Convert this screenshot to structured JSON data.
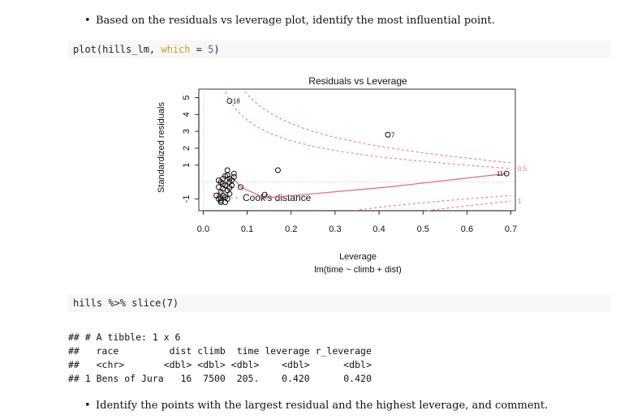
{
  "bullets": {
    "first": "Based on the residuals vs leverage plot, identify the most influential point.",
    "last": "Identify the points with the largest residual and the highest leverage, and comment."
  },
  "code1": {
    "fn": "plot(hills_lm, ",
    "arg": "which",
    "eq": " = ",
    "val": "5",
    "close": ")"
  },
  "code2": {
    "text": "hills %>% slice(7)"
  },
  "output_lines": [
    "## # A tibble: 1 x 6",
    "##   race         dist climb  time leverage r_leverage",
    "##   <chr>       <dbl> <dbl> <dbl>    <dbl>      <dbl>",
    "## 1 Bens of Jura   16  7500  205.    0.420      0.420"
  ],
  "chart_data": {
    "type": "scatter",
    "title": "Residuals vs Leverage",
    "xlabel": "Leverage",
    "xlabel2": "lm(time ~ climb + dist)",
    "ylabel": "Standardized residuals",
    "xlim": [
      -0.01,
      0.71
    ],
    "ylim": [
      -1.7,
      5.5
    ],
    "xticks": [
      "0.0",
      "0.1",
      "0.2",
      "0.3",
      "0.4",
      "0.5",
      "0.6",
      "0.7"
    ],
    "xtick_values": [
      0,
      0.1,
      0.2,
      0.3,
      0.4,
      0.5,
      0.6,
      0.7
    ],
    "yticks": [
      "-1",
      "1",
      "2",
      "3",
      "4",
      "5"
    ],
    "ytick_values": [
      -1,
      1,
      2,
      3,
      4,
      5
    ],
    "legend_text": "Cook's distance",
    "cook_labels": [
      "0.5",
      "1"
    ],
    "point_labels": [
      {
        "text": "18",
        "x": 0.06,
        "y": 4.8
      },
      {
        "text": "7",
        "x": 0.42,
        "y": 2.8
      },
      {
        "text": "11",
        "x": 0.69,
        "y": 0.5
      }
    ],
    "points": [
      {
        "x": 0.06,
        "y": 4.8
      },
      {
        "x": 0.42,
        "y": 2.8
      },
      {
        "x": 0.69,
        "y": 0.5
      },
      {
        "x": 0.17,
        "y": 0.7
      },
      {
        "x": 0.085,
        "y": -0.3
      },
      {
        "x": 0.14,
        "y": -0.75
      },
      {
        "x": 0.055,
        "y": 0.7
      },
      {
        "x": 0.055,
        "y": 0.4
      },
      {
        "x": 0.06,
        "y": 0.2
      },
      {
        "x": 0.06,
        "y": 0.0
      },
      {
        "x": 0.05,
        "y": -0.2
      },
      {
        "x": 0.045,
        "y": -0.4
      },
      {
        "x": 0.04,
        "y": -0.6
      },
      {
        "x": 0.05,
        "y": -0.9
      },
      {
        "x": 0.04,
        "y": -1.1
      },
      {
        "x": 0.035,
        "y": -1.0
      },
      {
        "x": 0.045,
        "y": -0.8
      },
      {
        "x": 0.055,
        "y": -0.5
      },
      {
        "x": 0.065,
        "y": 0.1
      },
      {
        "x": 0.07,
        "y": 0.3
      },
      {
        "x": 0.04,
        "y": 0.0
      },
      {
        "x": 0.045,
        "y": 0.2
      },
      {
        "x": 0.05,
        "y": -1.2
      },
      {
        "x": 0.06,
        "y": -0.7
      },
      {
        "x": 0.035,
        "y": -0.3
      },
      {
        "x": 0.04,
        "y": -1.2
      },
      {
        "x": 0.055,
        "y": -1.0
      },
      {
        "x": 0.03,
        "y": -0.8
      },
      {
        "x": 0.065,
        "y": -0.2
      },
      {
        "x": 0.07,
        "y": 0.5
      },
      {
        "x": 0.035,
        "y": 0.1
      },
      {
        "x": 0.045,
        "y": -0.1
      },
      {
        "x": 0.05,
        "y": 0.35
      },
      {
        "x": 0.04,
        "y": -0.95
      },
      {
        "x": 0.06,
        "y": -0.35
      }
    ],
    "smooth": [
      [
        0.03,
        -0.85
      ],
      [
        0.045,
        -0.4
      ],
      [
        0.06,
        0.25
      ],
      [
        0.07,
        0.2
      ],
      [
        0.085,
        -0.3
      ],
      [
        0.14,
        -0.95
      ],
      [
        0.42,
        -0.3
      ],
      [
        0.69,
        0.5
      ]
    ],
    "colors": {
      "points": "#000000",
      "smooth": "#e8707d",
      "cook": "#e8707d",
      "grid": "#bbbbbb"
    }
  }
}
